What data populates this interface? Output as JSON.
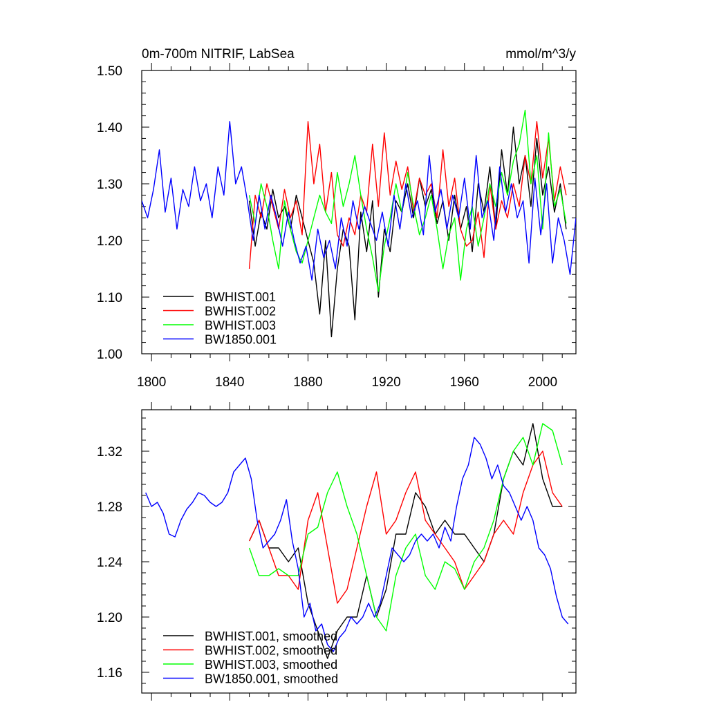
{
  "chart_data": [
    {
      "type": "line",
      "title_left": "0m-700m NITRIF, LabSea",
      "title_right": "mmol/m^3/y",
      "xlim": [
        1795,
        2017
      ],
      "ylim": [
        1.0,
        1.5
      ],
      "xticks": [
        1800,
        1840,
        1880,
        1920,
        1960,
        2000
      ],
      "xtick_labels": [
        "1800",
        "1840",
        "1880",
        "1920",
        "1960",
        "2000"
      ],
      "yticks": [
        1.0,
        1.1,
        1.2,
        1.3,
        1.4,
        1.5
      ],
      "ytick_labels": [
        "1.00",
        "1.10",
        "1.20",
        "1.30",
        "1.40",
        "1.50"
      ],
      "legend_position": "bottom-left",
      "series": [
        {
          "name": "BWHIST.001",
          "color": "#000000",
          "x": [
            1850,
            1853,
            1856,
            1859,
            1862,
            1865,
            1868,
            1871,
            1874,
            1877,
            1880,
            1883,
            1886,
            1889,
            1892,
            1895,
            1898,
            1901,
            1904,
            1907,
            1910,
            1913,
            1916,
            1919,
            1922,
            1925,
            1928,
            1931,
            1934,
            1937,
            1940,
            1943,
            1946,
            1949,
            1952,
            1955,
            1958,
            1961,
            1964,
            1967,
            1970,
            1973,
            1976,
            1979,
            1982,
            1985,
            1988,
            1991,
            1994,
            1997,
            2000,
            2003,
            2006,
            2009,
            2012
          ],
          "values": [
            1.27,
            1.19,
            1.25,
            1.22,
            1.29,
            1.24,
            1.26,
            1.22,
            1.28,
            1.24,
            1.2,
            1.16,
            1.07,
            1.2,
            1.03,
            1.15,
            1.22,
            1.19,
            1.06,
            1.25,
            1.18,
            1.27,
            1.1,
            1.22,
            1.18,
            1.27,
            1.25,
            1.3,
            1.24,
            1.31,
            1.26,
            1.29,
            1.23,
            1.27,
            1.2,
            1.28,
            1.22,
            1.26,
            1.18,
            1.3,
            1.25,
            1.33,
            1.22,
            1.36,
            1.28,
            1.4,
            1.3,
            1.35,
            1.26,
            1.38,
            1.28,
            1.33,
            1.25,
            1.3,
            1.22
          ]
        },
        {
          "name": "BWHIST.002",
          "color": "#ff0000",
          "x": [
            1850,
            1853,
            1856,
            1859,
            1862,
            1865,
            1868,
            1871,
            1874,
            1877,
            1880,
            1883,
            1886,
            1889,
            1892,
            1895,
            1898,
            1901,
            1904,
            1907,
            1910,
            1913,
            1916,
            1919,
            1922,
            1925,
            1928,
            1931,
            1934,
            1937,
            1940,
            1943,
            1946,
            1949,
            1952,
            1955,
            1958,
            1961,
            1964,
            1967,
            1970,
            1973,
            1976,
            1979,
            1982,
            1985,
            1988,
            1991,
            1994,
            1997,
            2000,
            2003,
            2006,
            2009,
            2012
          ],
          "values": [
            1.15,
            1.28,
            1.24,
            1.3,
            1.26,
            1.22,
            1.29,
            1.24,
            1.27,
            1.21,
            1.41,
            1.3,
            1.37,
            1.25,
            1.32,
            1.21,
            1.19,
            1.24,
            1.21,
            1.28,
            1.25,
            1.37,
            1.26,
            1.39,
            1.28,
            1.34,
            1.29,
            1.33,
            1.25,
            1.31,
            1.28,
            1.3,
            1.24,
            1.36,
            1.26,
            1.31,
            1.22,
            1.19,
            1.2,
            1.25,
            1.17,
            1.3,
            1.22,
            1.27,
            1.24,
            1.3,
            1.26,
            1.35,
            1.3,
            1.41,
            1.31,
            1.38,
            1.27,
            1.33,
            1.28
          ]
        },
        {
          "name": "BWHIST.003",
          "color": "#00ff00",
          "x": [
            1850,
            1853,
            1856,
            1859,
            1862,
            1865,
            1868,
            1871,
            1874,
            1877,
            1880,
            1883,
            1886,
            1889,
            1892,
            1895,
            1898,
            1901,
            1904,
            1907,
            1910,
            1913,
            1916,
            1919,
            1922,
            1925,
            1928,
            1931,
            1934,
            1937,
            1940,
            1943,
            1946,
            1949,
            1952,
            1955,
            1958,
            1961,
            1964,
            1967,
            1970,
            1973,
            1976,
            1979,
            1982,
            1985,
            1988,
            1991,
            1994,
            1997,
            2000,
            2003,
            2006,
            2009,
            2012
          ],
          "values": [
            1.28,
            1.23,
            1.3,
            1.26,
            1.2,
            1.15,
            1.27,
            1.22,
            1.18,
            1.16,
            1.2,
            1.24,
            1.28,
            1.25,
            1.23,
            1.32,
            1.26,
            1.3,
            1.35,
            1.28,
            1.22,
            1.17,
            1.11,
            1.19,
            1.24,
            1.3,
            1.25,
            1.32,
            1.26,
            1.21,
            1.24,
            1.28,
            1.22,
            1.15,
            1.21,
            1.24,
            1.13,
            1.22,
            1.26,
            1.19,
            1.24,
            1.3,
            1.26,
            1.32,
            1.28,
            1.34,
            1.37,
            1.43,
            1.3,
            1.35,
            1.22,
            1.39,
            1.26,
            1.29,
            1.23
          ]
        },
        {
          "name": "BW1850.001",
          "color": "#0000ff",
          "x": [
            1795,
            1798,
            1801,
            1804,
            1807,
            1810,
            1813,
            1816,
            1819,
            1822,
            1825,
            1828,
            1831,
            1834,
            1837,
            1840,
            1843,
            1846,
            1849,
            1852,
            1855,
            1858,
            1861,
            1864,
            1867,
            1870,
            1873,
            1876,
            1879,
            1882,
            1885,
            1888,
            1891,
            1894,
            1897,
            1900,
            1903,
            1906,
            1909,
            1912,
            1915,
            1918,
            1921,
            1924,
            1927,
            1930,
            1933,
            1936,
            1939,
            1942,
            1945,
            1948,
            1951,
            1954,
            1957,
            1960,
            1963,
            1966,
            1969,
            1972,
            1975,
            1978,
            1981,
            1984,
            1987,
            1990,
            1993,
            1996,
            1999,
            2002,
            2005,
            2008,
            2011,
            2014,
            2017
          ],
          "values": [
            1.27,
            1.24,
            1.29,
            1.36,
            1.25,
            1.31,
            1.22,
            1.29,
            1.26,
            1.33,
            1.27,
            1.3,
            1.24,
            1.33,
            1.28,
            1.41,
            1.3,
            1.33,
            1.27,
            1.2,
            1.28,
            1.22,
            1.28,
            1.24,
            1.19,
            1.25,
            1.2,
            1.16,
            1.19,
            1.13,
            1.22,
            1.17,
            1.2,
            1.15,
            1.24,
            1.19,
            1.27,
            1.22,
            1.26,
            1.23,
            1.2,
            1.25,
            1.19,
            1.28,
            1.22,
            1.3,
            1.24,
            1.27,
            1.21,
            1.35,
            1.25,
            1.29,
            1.22,
            1.28,
            1.24,
            1.31,
            1.22,
            1.35,
            1.24,
            1.27,
            1.2,
            1.33,
            1.25,
            1.3,
            1.24,
            1.27,
            1.16,
            1.31,
            1.21,
            1.3,
            1.16,
            1.24,
            1.2,
            1.14,
            1.24
          ]
        }
      ],
      "legend": [
        "BWHIST.001",
        "BWHIST.002",
        "BWHIST.003",
        "BW1850.001"
      ]
    },
    {
      "type": "line",
      "title_left": "",
      "title_right": "",
      "xlim": [
        1795,
        2017
      ],
      "ylim": [
        1.145,
        1.35
      ],
      "xticks": [
        1800,
        1840,
        1880,
        1920,
        1960,
        2000
      ],
      "xtick_labels": [
        "",
        "",
        "",
        "",
        "",
        ""
      ],
      "yticks": [
        1.16,
        1.2,
        1.24,
        1.28,
        1.32
      ],
      "ytick_labels": [
        "1.16",
        "1.20",
        "1.24",
        "1.28",
        "1.32"
      ],
      "legend_position": "bottom-left",
      "series": [
        {
          "name": "BWHIST.001, smoothed",
          "color": "#000000",
          "x": [
            1850,
            1855,
            1860,
            1865,
            1870,
            1875,
            1880,
            1885,
            1890,
            1895,
            1900,
            1905,
            1910,
            1915,
            1920,
            1925,
            1930,
            1935,
            1940,
            1945,
            1950,
            1955,
            1960,
            1965,
            1970,
            1975,
            1980,
            1985,
            1990,
            1995,
            2000,
            2005,
            2010
          ],
          "values": [
            1.255,
            1.27,
            1.25,
            1.25,
            1.24,
            1.25,
            1.21,
            1.19,
            1.17,
            1.19,
            1.2,
            1.2,
            1.23,
            1.2,
            1.22,
            1.26,
            1.26,
            1.29,
            1.28,
            1.26,
            1.27,
            1.26,
            1.26,
            1.25,
            1.24,
            1.26,
            1.3,
            1.32,
            1.31,
            1.34,
            1.3,
            1.28,
            1.28
          ]
        },
        {
          "name": "BWHIST.002, smoothed",
          "color": "#ff0000",
          "x": [
            1850,
            1855,
            1860,
            1865,
            1870,
            1875,
            1880,
            1885,
            1890,
            1895,
            1900,
            1905,
            1910,
            1915,
            1920,
            1925,
            1930,
            1935,
            1940,
            1945,
            1950,
            1955,
            1960,
            1965,
            1970,
            1975,
            1980,
            1985,
            1990,
            1995,
            2000,
            2005,
            2010
          ],
          "values": [
            1.255,
            1.27,
            1.25,
            1.23,
            1.23,
            1.22,
            1.27,
            1.29,
            1.25,
            1.21,
            1.22,
            1.25,
            1.28,
            1.305,
            1.26,
            1.27,
            1.29,
            1.305,
            1.27,
            1.26,
            1.25,
            1.24,
            1.22,
            1.23,
            1.24,
            1.26,
            1.27,
            1.26,
            1.29,
            1.31,
            1.32,
            1.29,
            1.28
          ]
        },
        {
          "name": "BWHIST.003, smoothed",
          "color": "#00ff00",
          "x": [
            1850,
            1855,
            1860,
            1865,
            1870,
            1875,
            1880,
            1885,
            1890,
            1895,
            1900,
            1905,
            1910,
            1915,
            1920,
            1925,
            1930,
            1935,
            1940,
            1945,
            1950,
            1955,
            1960,
            1965,
            1970,
            1975,
            1980,
            1985,
            1990,
            1995,
            2000,
            2005,
            2010
          ],
          "values": [
            1.25,
            1.23,
            1.23,
            1.235,
            1.23,
            1.23,
            1.26,
            1.265,
            1.29,
            1.305,
            1.28,
            1.26,
            1.23,
            1.2,
            1.19,
            1.23,
            1.25,
            1.26,
            1.23,
            1.22,
            1.24,
            1.235,
            1.22,
            1.24,
            1.25,
            1.27,
            1.3,
            1.32,
            1.33,
            1.31,
            1.34,
            1.335,
            1.31
          ]
        },
        {
          "name": "BW1850.001, smoothed",
          "color": "#0000ff",
          "x": [
            1797,
            1800,
            1803,
            1806,
            1809,
            1812,
            1815,
            1818,
            1821,
            1824,
            1827,
            1830,
            1833,
            1836,
            1839,
            1842,
            1845,
            1848,
            1851,
            1854,
            1857,
            1860,
            1863,
            1866,
            1869,
            1872,
            1875,
            1878,
            1881,
            1884,
            1887,
            1890,
            1893,
            1896,
            1899,
            1902,
            1905,
            1908,
            1911,
            1914,
            1917,
            1920,
            1923,
            1926,
            1929,
            1932,
            1935,
            1938,
            1941,
            1944,
            1947,
            1950,
            1953,
            1956,
            1959,
            1962,
            1965,
            1968,
            1971,
            1974,
            1977,
            1980,
            1983,
            1986,
            1989,
            1992,
            1995,
            1998,
            2001,
            2004,
            2007,
            2010,
            2013
          ],
          "values": [
            1.29,
            1.28,
            1.283,
            1.275,
            1.26,
            1.258,
            1.27,
            1.278,
            1.283,
            1.29,
            1.288,
            1.283,
            1.28,
            1.283,
            1.29,
            1.305,
            1.31,
            1.315,
            1.3,
            1.27,
            1.25,
            1.255,
            1.26,
            1.27,
            1.285,
            1.255,
            1.235,
            1.2,
            1.21,
            1.19,
            1.195,
            1.18,
            1.175,
            1.185,
            1.19,
            1.2,
            1.195,
            1.2,
            1.21,
            1.2,
            1.21,
            1.23,
            1.25,
            1.245,
            1.24,
            1.245,
            1.255,
            1.26,
            1.255,
            1.26,
            1.25,
            1.265,
            1.255,
            1.28,
            1.3,
            1.31,
            1.33,
            1.325,
            1.315,
            1.3,
            1.31,
            1.295,
            1.29,
            1.28,
            1.27,
            1.28,
            1.27,
            1.25,
            1.245,
            1.235,
            1.215,
            1.2,
            1.195
          ]
        }
      ],
      "legend": [
        "BWHIST.001, smoothed",
        "BWHIST.002, smoothed",
        "BWHIST.003, smoothed",
        "BW1850.001, smoothed"
      ]
    }
  ]
}
